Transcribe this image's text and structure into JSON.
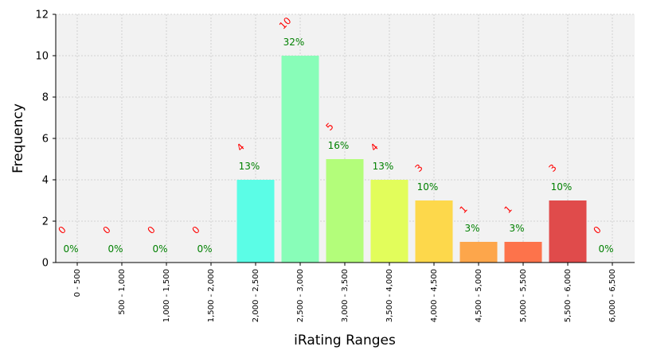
{
  "chart_data": {
    "type": "bar",
    "xlabel": "iRating Ranges",
    "ylabel": "Frequency",
    "ylim": [
      0,
      12
    ],
    "yticks": [
      0,
      2,
      4,
      6,
      8,
      10,
      12
    ],
    "grid": true,
    "categories": [
      "0 - 500",
      "500 - 1,000",
      "1,000 - 1,500",
      "1,500 - 2,000",
      "2,000 - 2,500",
      "2,500 - 3,000",
      "3,000 - 3,500",
      "3,500 - 4,000",
      "4,000 - 4,500",
      "4,500 - 5,000",
      "5,000 - 5,500",
      "5,500 - 6,000",
      "6,000 - 6,500"
    ],
    "values": [
      0,
      0,
      0,
      0,
      4,
      10,
      5,
      4,
      3,
      1,
      1,
      3,
      0
    ],
    "count_labels": [
      "0",
      "0",
      "0",
      "0",
      "4",
      "10",
      "5",
      "4",
      "3",
      "1",
      "1",
      "3",
      "0"
    ],
    "percent_labels": [
      "0%",
      "0%",
      "0%",
      "0%",
      "13%",
      "32%",
      "16%",
      "13%",
      "10%",
      "3%",
      "3%",
      "10%",
      "0%"
    ],
    "colors": [
      "#5b5bff",
      "#5b8cff",
      "#5bbcff",
      "#5bf0ff",
      "#5bfde6",
      "#88fdb8",
      "#b3fd7a",
      "#e2fd5b",
      "#fdd84b",
      "#fda64b",
      "#fd734b",
      "#e04b4b",
      "#b34b4b"
    ],
    "plot_background": "#f2f2f2",
    "count_label_color": "#ff0000",
    "percent_label_color": "#008000"
  }
}
